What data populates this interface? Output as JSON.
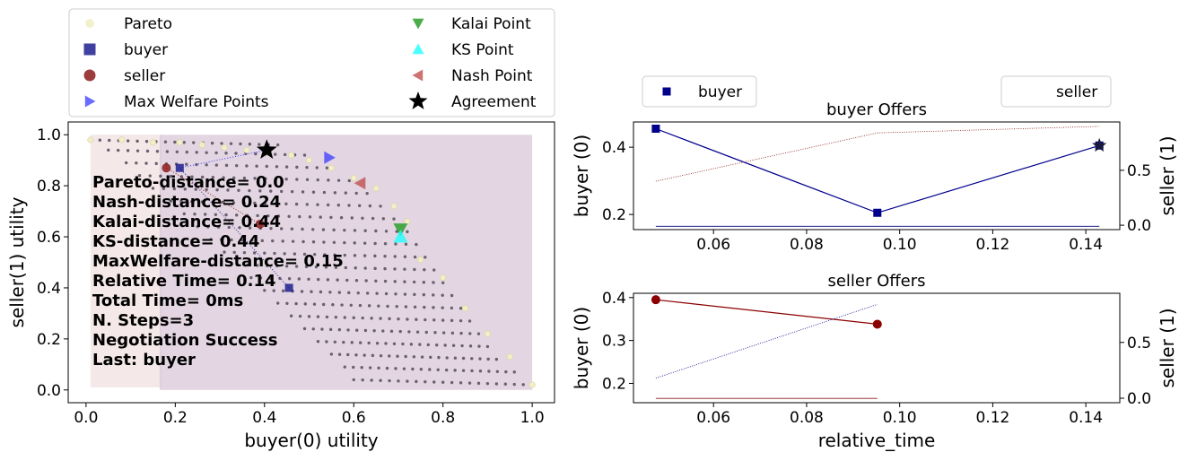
{
  "chart_data": [
    {
      "panel": "main",
      "type": "scatter",
      "xlabel": "buyer(0) utility",
      "ylabel": "seller(1) utility",
      "xlim": [
        -0.04,
        1.05
      ],
      "ylim": [
        -0.05,
        1.05
      ],
      "xticks": [
        "0.0",
        "0.2",
        "0.4",
        "0.6",
        "0.8",
        "1.0"
      ],
      "yticks": [
        "0.0",
        "0.2",
        "0.4",
        "0.6",
        "0.8",
        "1.0"
      ],
      "legend_placement": "above",
      "legend": [
        {
          "key": "pareto",
          "label": "Pareto",
          "marker": "circle",
          "color": "#f2efc8"
        },
        {
          "key": "buyer",
          "label": "buyer",
          "marker": "square",
          "color": "#1f1f8f"
        },
        {
          "key": "seller",
          "label": "seller",
          "marker": "circle",
          "color": "#8b1a1a"
        },
        {
          "key": "maxwelfare",
          "label": "Max Welfare Points",
          "marker": "triangle-right",
          "color": "#3a3aff"
        },
        {
          "key": "kalai",
          "label": "Kalai Point",
          "marker": "triangle-down",
          "color": "#2ca02c"
        },
        {
          "key": "ks",
          "label": "KS Point",
          "marker": "triangle-up",
          "color": "#1fffff"
        },
        {
          "key": "nash",
          "label": "Nash Point",
          "marker": "triangle-left",
          "color": "#c0504d"
        },
        {
          "key": "agreement",
          "label": "Agreement",
          "marker": "star",
          "color": "#000000"
        }
      ],
      "pareto": [
        [
          0.01,
          0.98
        ],
        [
          0.08,
          0.98
        ],
        [
          0.15,
          0.97
        ],
        [
          0.21,
          0.97
        ],
        [
          0.26,
          0.96
        ],
        [
          0.31,
          0.95
        ],
        [
          0.36,
          0.94
        ],
        [
          0.41,
          0.93
        ],
        [
          0.46,
          0.92
        ],
        [
          0.5,
          0.9
        ],
        [
          0.55,
          0.87
        ],
        [
          0.6,
          0.83
        ],
        [
          0.65,
          0.79
        ],
        [
          0.69,
          0.72
        ],
        [
          0.72,
          0.66
        ],
        [
          0.75,
          0.51
        ],
        [
          0.8,
          0.44
        ],
        [
          0.85,
          0.32
        ],
        [
          0.9,
          0.22
        ],
        [
          0.95,
          0.13
        ],
        [
          1.0,
          0.02
        ]
      ],
      "outcome_bands": {
        "row_count": 20,
        "x_start": [
          0.01,
          0.05,
          0.09,
          0.12,
          0.15,
          0.19,
          0.22,
          0.25,
          0.28,
          0.31,
          0.34,
          0.37,
          0.4,
          0.43,
          0.46,
          0.49,
          0.52,
          0.55,
          0.58,
          0.6
        ],
        "x_end": [
          0.43,
          0.49,
          0.54,
          0.59,
          0.63,
          0.66,
          0.69,
          0.72,
          0.74,
          0.76,
          0.78,
          0.8,
          0.82,
          0.84,
          0.86,
          0.88,
          0.9,
          0.92,
          0.96,
          1.0
        ],
        "y_top": [
          0.98,
          0.94,
          0.89,
          0.84,
          0.79,
          0.74,
          0.69,
          0.64,
          0.59,
          0.54,
          0.49,
          0.44,
          0.39,
          0.34,
          0.29,
          0.24,
          0.19,
          0.14,
          0.09,
          0.04
        ]
      },
      "regions": [
        {
          "name": "buyer",
          "x": [
            0.01,
            0.17
          ],
          "y": [
            0.01,
            1.0
          ],
          "color": "#f0e0e0"
        },
        {
          "name": "seller",
          "x": [
            0.165,
            1.0
          ],
          "y": [
            0.0,
            1.0
          ],
          "color": "#d9c8d8"
        }
      ],
      "buyer_offers": [
        [
          0.21,
          0.87
        ],
        [
          0.455,
          0.4
        ]
      ],
      "seller_offers": [
        [
          0.18,
          0.87
        ],
        [
          0.39,
          0.65
        ]
      ],
      "max_welfare": [
        [
          0.545,
          0.91
        ]
      ],
      "kalai": [
        [
          0.705,
          0.63
        ]
      ],
      "ks": [
        [
          0.705,
          0.6
        ]
      ],
      "nash": [
        [
          0.615,
          0.81
        ]
      ],
      "agreement": [
        [
          0.405,
          0.94
        ]
      ],
      "stats": [
        "Pareto-distance=  0.0",
        "Nash-distance= 0.24",
        "Kalai-distance= 0.44",
        "KS-distance= 0.44",
        "MaxWelfare-distance= 0.15",
        "Relative Time= 0.14",
        "Total Time= 0ms",
        "N. Steps=3",
        "Negotiation Success",
        "Last: buyer"
      ]
    },
    {
      "panel": "buyer-offers",
      "type": "line",
      "title": "buyer Offers",
      "xlim": [
        0.0428,
        0.1473
      ],
      "xticks": [
        "0.06",
        "0.08",
        "0.10",
        "0.12",
        "0.14"
      ],
      "ylabel": "buyer (0)",
      "ylim": [
        0.155,
        0.475
      ],
      "yticks": [
        "0.2",
        "0.4"
      ],
      "ylabel_right": "seller (1)",
      "ylim_right": [
        -0.04,
        0.94
      ],
      "yticks_right": [
        "0.0",
        "0.5"
      ],
      "legend": [
        {
          "label": "buyer",
          "marker": "square",
          "color": "#00008b"
        }
      ],
      "x": [
        0.0476,
        0.0952,
        0.1429
      ],
      "series": [
        {
          "name": "buyer",
          "axis": "left",
          "color": "#00008b",
          "marker": "square",
          "values": [
            0.455,
            0.205,
            0.405
          ]
        },
        {
          "axis": "right",
          "color": "#8b1a1a",
          "style": "dotted",
          "values": [
            0.4,
            0.84,
            0.9
          ]
        },
        {
          "axis": "left",
          "color": "#000080",
          "style": "thin",
          "values": [
            0.165,
            0.165,
            0.165
          ]
        }
      ],
      "agreement": {
        "x": 0.1429,
        "y": 0.405
      }
    },
    {
      "panel": "seller-offers",
      "type": "line",
      "title": "seller Offers",
      "xlabel": "relative_time",
      "xlim": [
        0.0428,
        0.1473
      ],
      "xticks": [
        "0.06",
        "0.08",
        "0.10",
        "0.12",
        "0.14"
      ],
      "ylabel": "buyer (0)",
      "ylim": [
        0.155,
        0.41
      ],
      "yticks": [
        "0.2",
        "0.3",
        "0.4"
      ],
      "ylabel_right": "seller (1)",
      "ylim_right": [
        -0.04,
        0.94
      ],
      "yticks_right": [
        "0.0",
        "0.5"
      ],
      "legend": [
        {
          "label": "seller",
          "marker": "none",
          "color": "#8b1a1a"
        }
      ],
      "x": [
        0.0476,
        0.0952
      ],
      "series": [
        {
          "name": "seller",
          "axis": "left",
          "color": "#8b0000",
          "marker": "circle",
          "values": [
            0.395,
            0.338
          ]
        },
        {
          "axis": "right",
          "color": "#00008b",
          "style": "dotted",
          "values": [
            0.18,
            0.84
          ]
        },
        {
          "axis": "left",
          "color": "#8b1a1a",
          "style": "thin",
          "values": [
            0.165,
            0.165
          ]
        }
      ]
    }
  ]
}
